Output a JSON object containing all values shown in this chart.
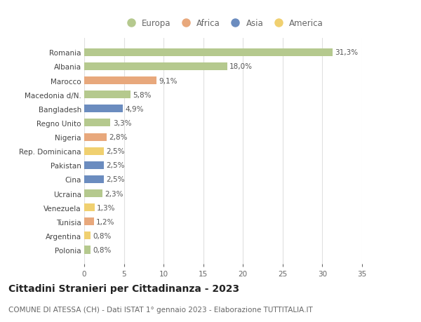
{
  "categories": [
    "Romania",
    "Albania",
    "Marocco",
    "Macedonia d/N.",
    "Bangladesh",
    "Regno Unito",
    "Nigeria",
    "Rep. Dominicana",
    "Pakistan",
    "Cina",
    "Ucraina",
    "Venezuela",
    "Tunisia",
    "Argentina",
    "Polonia"
  ],
  "values": [
    31.3,
    18.0,
    9.1,
    5.8,
    4.9,
    3.3,
    2.8,
    2.5,
    2.5,
    2.5,
    2.3,
    1.3,
    1.2,
    0.8,
    0.8
  ],
  "labels": [
    "31,3%",
    "18,0%",
    "9,1%",
    "5,8%",
    "4,9%",
    "3,3%",
    "2,8%",
    "2,5%",
    "2,5%",
    "2,5%",
    "2,3%",
    "1,3%",
    "1,2%",
    "0,8%",
    "0,8%"
  ],
  "continents": [
    "Europa",
    "Europa",
    "Africa",
    "Europa",
    "Asia",
    "Europa",
    "Africa",
    "America",
    "Asia",
    "Asia",
    "Europa",
    "America",
    "Africa",
    "America",
    "Europa"
  ],
  "continent_colors": {
    "Europa": "#b5c98e",
    "Africa": "#e8a87c",
    "Asia": "#6b8cbf",
    "America": "#f0d070"
  },
  "legend_items": [
    "Europa",
    "Africa",
    "Asia",
    "America"
  ],
  "legend_colors": [
    "#b5c98e",
    "#e8a87c",
    "#6b8cbf",
    "#f0d070"
  ],
  "xlim": [
    0,
    35
  ],
  "xticks": [
    0,
    5,
    10,
    15,
    20,
    25,
    30,
    35
  ],
  "title": "Cittadini Stranieri per Cittadinanza - 2023",
  "subtitle": "COMUNE DI ATESSA (CH) - Dati ISTAT 1° gennaio 2023 - Elaborazione TUTTITALIA.IT",
  "background_color": "#ffffff",
  "grid_color": "#e0e0e0",
  "bar_height": 0.55,
  "title_fontsize": 10,
  "subtitle_fontsize": 7.5,
  "tick_fontsize": 7.5,
  "label_fontsize": 7.5,
  "legend_fontsize": 8.5
}
